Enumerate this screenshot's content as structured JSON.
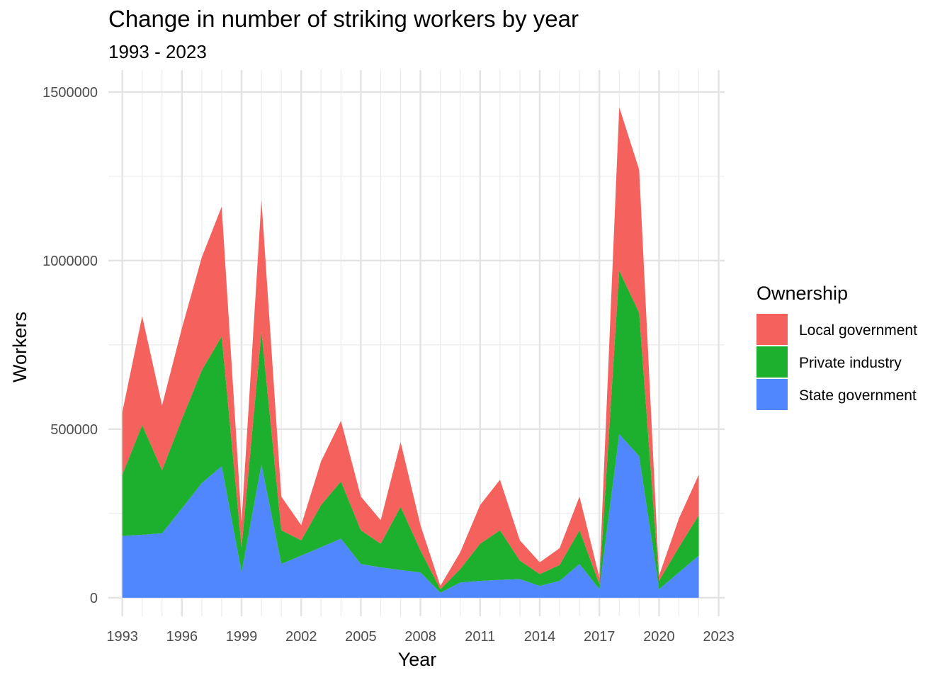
{
  "chart_data": {
    "type": "area",
    "stacked": true,
    "title": "Change in number of striking workers by year",
    "subtitle": "1993 - 2023",
    "xlabel": "Year",
    "ylabel": "Workers",
    "xlim": [
      1992.3,
      2023.3
    ],
    "ylim": [
      -55000,
      1565000
    ],
    "x_ticks": [
      1993,
      1996,
      1999,
      2002,
      2005,
      2008,
      2011,
      2014,
      2017,
      2020,
      2023
    ],
    "y_ticks": [
      0,
      500000,
      1000000,
      1500000
    ],
    "y_minor_ticks": [
      250000,
      750000,
      1250000
    ],
    "grid": true,
    "legend": {
      "title": "Ownership",
      "position": "right",
      "entries": [
        "Local government",
        "Private industry",
        "State government"
      ]
    },
    "x": [
      1993,
      1994,
      1995,
      1996,
      1997,
      1998,
      1999,
      2000,
      2001,
      2002,
      2003,
      2004,
      2005,
      2006,
      2007,
      2008,
      2009,
      2010,
      2011,
      2012,
      2013,
      2014,
      2015,
      2016,
      2017,
      2018,
      2019,
      2020,
      2021,
      2022
    ],
    "series": [
      {
        "name": "State government",
        "color": "#5087FF",
        "values": [
          183000,
          187000,
          191000,
          265000,
          340000,
          390000,
          75000,
          395000,
          100000,
          125000,
          150000,
          175000,
          100000,
          90000,
          82000,
          75000,
          15000,
          45000,
          50000,
          53000,
          55000,
          35000,
          50000,
          100000,
          25000,
          485000,
          420000,
          25000,
          75000,
          125000
        ]
      },
      {
        "name": "Private industry",
        "color": "#1DB02F",
        "values": [
          182000,
          325000,
          187000,
          265000,
          335000,
          385000,
          75000,
          395000,
          100000,
          45000,
          125000,
          170000,
          100000,
          70000,
          188000,
          65000,
          10000,
          40000,
          110000,
          147000,
          55000,
          35000,
          47000,
          100000,
          15000,
          485000,
          425000,
          25000,
          75000,
          120000
        ]
      },
      {
        "name": "Local government",
        "color": "#F5625D",
        "values": [
          185000,
          323000,
          192000,
          270000,
          335000,
          385000,
          75000,
          390000,
          100000,
          45000,
          130000,
          180000,
          100000,
          70000,
          192000,
          75000,
          10000,
          50000,
          115000,
          150000,
          60000,
          35000,
          50000,
          100000,
          20000,
          485000,
          425000,
          15000,
          85000,
          120000
        ]
      }
    ]
  }
}
